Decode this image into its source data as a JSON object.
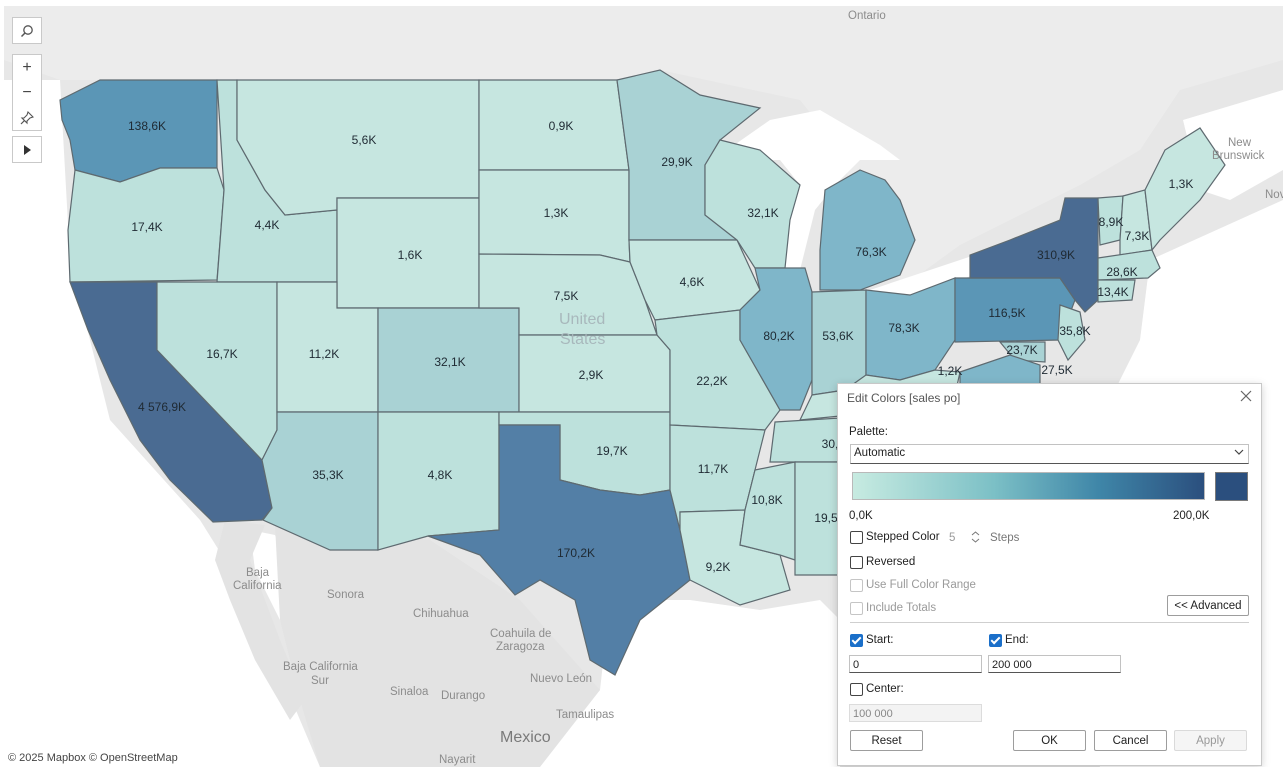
{
  "map": {
    "places": {
      "ontario": "Ontario",
      "new_brunswick_1": "New",
      "new_brunswick_2": "Brunswick",
      "nova": "Nov",
      "united_1": "United",
      "united_2": "States",
      "baja_california_1": "Baja",
      "baja_california_2": "California",
      "sonora": "Sonora",
      "chihuahua": "Chihuahua",
      "coahuila_1": "Coahuila de",
      "coahuila_2": "Zaragoza",
      "baja_california_sur_1": "Baja California",
      "baja_california_sur_2": "Sur",
      "nuevo_leon": "Nuevo León",
      "sinaloa": "Sinaloa",
      "durango": "Durango",
      "tamaulipas": "Tamaulipas",
      "mexico": "Mexico",
      "nayarit": "Nayarit"
    },
    "attribution": "© 2025 Mapbox © OpenStreetMap",
    "state_values": {
      "WA": "138,6K",
      "OR": "17,4K",
      "CA": "4 576,9K",
      "ID": "4,4K",
      "NV": "16,7K",
      "MT": "5,6K",
      "WY": "1,6K",
      "UT": "11,2K",
      "AZ": "35,3K",
      "CO": "32,1K",
      "NM": "4,8K",
      "ND": "0,9K",
      "SD": "1,3K",
      "NE": "7,5K",
      "KS": "2,9K",
      "OK": "19,7K",
      "TX": "170,2K",
      "MN": "29,9K",
      "IA": "4,6K",
      "MO": "22,2K",
      "AR": "11,7K",
      "LA": "9,2K",
      "WI": "32,1K",
      "IL": "80,2K",
      "MI": "76,3K",
      "IN": "53,6K",
      "OH": "78,3K",
      "KY": "1,2K",
      "TN": "30,",
      "MS": "10,8K",
      "AL": "19,5",
      "PA": "116,5K",
      "NY": "310,9K",
      "VT": "8,9K",
      "NH": "7,3K",
      "ME": "1,3K",
      "MA": "28,6K",
      "CT": "13,4K",
      "NJ": "35,8K",
      "MD": "23,7K",
      "DE": "27,5K"
    },
    "colors": {
      "c0": "#c6e6e0",
      "c1": "#bde1dc",
      "c2": "#a9d2d4",
      "c3": "#7fb6c9",
      "c4": "#5b96b6",
      "c5": "#537fa6",
      "c6": "#4a6b92",
      "c7": "#4d6f97"
    }
  },
  "toolbar": {
    "search_icon": "search-icon",
    "zoom_in": "+",
    "zoom_out": "−",
    "pin_icon": "pin-icon",
    "play_icon": "play-icon"
  },
  "dialog": {
    "title": "Edit Colors [sales po]",
    "palette_label": "Palette:",
    "palette_value": "Automatic",
    "range_min": "0,0K",
    "range_max": "200,0K",
    "ramp_start_color": "#c7ebe1",
    "ramp_end_color": "#2b4f7e",
    "stepped_color": "Stepped Color",
    "steps_value": "5",
    "steps_label": "Steps",
    "reversed": "Reversed",
    "use_full_color_range": "Use Full Color Range",
    "include_totals": "Include Totals",
    "advanced": "<< Advanced",
    "start_label": "Start:",
    "end_label": "End:",
    "start_value": "0",
    "end_value": "200 000",
    "center_label": "Center:",
    "center_value": "100 000",
    "buttons": {
      "reset": "Reset",
      "ok": "OK",
      "cancel": "Cancel",
      "apply": "Apply"
    }
  }
}
